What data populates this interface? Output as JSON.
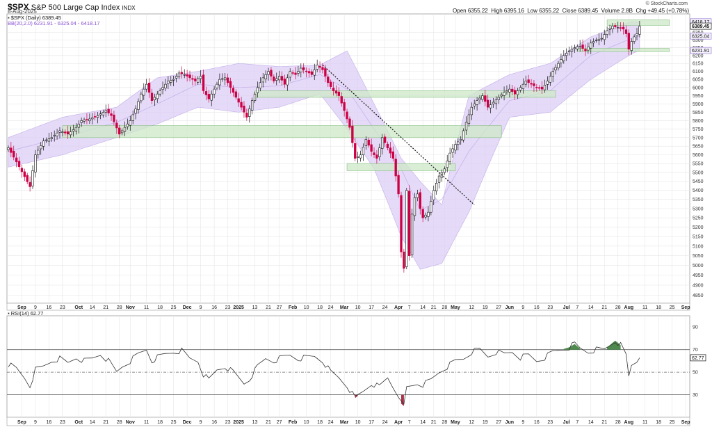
{
  "header": {
    "symbol": "$SPX",
    "name": "S&P 500 Large Cap Index",
    "exchange": "INDX",
    "date": "8-Aug-2025",
    "credit": "© StockCharts.com",
    "open_label": "Open",
    "open": "6355.22",
    "high_label": "High",
    "high": "6395.16",
    "low_label": "Low",
    "low": "6355.22",
    "close_label": "Close",
    "close": "6389.45",
    "volume_label": "Volume",
    "volume": "2.8B",
    "chg_label": "Chg",
    "chg": "+49.45 (+0.78%)"
  },
  "legend": {
    "price": "$SPX (Daily) 6389.45",
    "bb": "BB(20,2.0) 6231.91 - 6325.04 - 6418.17",
    "rsi": "RSI(14) 62.77"
  },
  "colors": {
    "up": "#111111",
    "down": "#cc0044",
    "band": "#dccef5",
    "band_line": "#c2aee8",
    "zone_fill": "#cde8c8",
    "zone_edge": "#8fc48a",
    "rsi_line": "#333333",
    "rsi_over": "#4e8a4e",
    "rsi_under": "#a83248",
    "grid": "#e6e6e6"
  },
  "chart_data": [
    {
      "type": "candlestick",
      "title": "$SPX (Daily) 6389.45",
      "ylim": [
        4810,
        6470
      ],
      "y_scale": "log",
      "y_ticks": [
        4850,
        4900,
        4950,
        5000,
        5050,
        5100,
        5150,
        5200,
        5250,
        5300,
        5350,
        5400,
        5450,
        5500,
        5550,
        5600,
        5650,
        5700,
        5750,
        5800,
        5850,
        5900,
        5950,
        6000,
        6050,
        6100,
        6150,
        6200,
        6250,
        6300,
        6350
      ],
      "x_ticks": [
        {
          "label": "Sep",
          "bold": true,
          "d": 5
        },
        {
          "label": "9",
          "d": 10
        },
        {
          "label": "16",
          "d": 15
        },
        {
          "label": "23",
          "d": 20
        },
        {
          "label": "Oct",
          "bold": true,
          "d": 26
        },
        {
          "label": "14",
          "d": 31
        },
        {
          "label": "21",
          "d": 36
        },
        {
          "label": "28",
          "d": 41
        },
        {
          "label": "Nov",
          "bold": true,
          "d": 45
        },
        {
          "label": "11",
          "d": 51
        },
        {
          "label": "18",
          "d": 56
        },
        {
          "label": "25",
          "d": 61
        },
        {
          "label": "Dec",
          "bold": true,
          "d": 66
        },
        {
          "label": "9",
          "d": 71
        },
        {
          "label": "16",
          "d": 76
        },
        {
          "label": "23",
          "d": 81
        },
        {
          "label": "2025",
          "bold": true,
          "d": 85
        },
        {
          "label": "13",
          "d": 91
        },
        {
          "label": "21",
          "d": 96
        },
        {
          "label": "27",
          "d": 100
        },
        {
          "label": "Feb",
          "bold": true,
          "d": 105
        },
        {
          "label": "10",
          "d": 110
        },
        {
          "label": "18",
          "d": 115
        },
        {
          "label": "24",
          "d": 119
        },
        {
          "label": "Mar",
          "bold": true,
          "d": 124
        },
        {
          "label": "10",
          "d": 129
        },
        {
          "label": "17",
          "d": 134
        },
        {
          "label": "24",
          "d": 139
        },
        {
          "label": "Apr",
          "bold": true,
          "d": 144
        },
        {
          "label": "7",
          "d": 148
        },
        {
          "label": "14",
          "d": 153
        },
        {
          "label": "21",
          "d": 157
        },
        {
          "label": "28",
          "d": 161
        },
        {
          "label": "May",
          "bold": true,
          "d": 165
        },
        {
          "label": "12",
          "d": 171
        },
        {
          "label": "19",
          "d": 176
        },
        {
          "label": "27",
          "d": 181
        },
        {
          "label": "Jun",
          "bold": true,
          "d": 185
        },
        {
          "label": "9",
          "d": 190
        },
        {
          "label": "16",
          "d": 195
        },
        {
          "label": "23",
          "d": 200
        },
        {
          "label": "Jul",
          "bold": true,
          "d": 206
        },
        {
          "label": "7",
          "d": 210
        },
        {
          "label": "14",
          "d": 215
        },
        {
          "label": "21",
          "d": 220
        },
        {
          "label": "28",
          "d": 225
        },
        {
          "label": "Aug",
          "bold": true,
          "d": 229
        },
        {
          "label": "11",
          "d": 235
        },
        {
          "label": "18",
          "d": 240
        },
        {
          "label": "25",
          "d": 245
        },
        {
          "label": "Sep",
          "bold": true,
          "d": 250
        }
      ],
      "x_total": 252,
      "last_index": 233,
      "key_closes": [
        [
          0,
          5640
        ],
        [
          3,
          5560
        ],
        [
          8,
          5420
        ],
        [
          10,
          5600
        ],
        [
          13,
          5680
        ],
        [
          16,
          5700
        ],
        [
          19,
          5740
        ],
        [
          22,
          5720
        ],
        [
          25,
          5760
        ],
        [
          27,
          5800
        ],
        [
          30,
          5810
        ],
        [
          33,
          5830
        ],
        [
          36,
          5860
        ],
        [
          38,
          5830
        ],
        [
          41,
          5720
        ],
        [
          43,
          5760
        ],
        [
          45,
          5800
        ],
        [
          47,
          5870
        ],
        [
          49,
          5960
        ],
        [
          51,
          6020
        ],
        [
          53,
          5920
        ],
        [
          55,
          5960
        ],
        [
          57,
          6000
        ],
        [
          59,
          6040
        ],
        [
          61,
          6050
        ],
        [
          63,
          6090
        ],
        [
          65,
          6080
        ],
        [
          67,
          6060
        ],
        [
          69,
          6040
        ],
        [
          71,
          6070
        ],
        [
          72,
          5980
        ],
        [
          74,
          5930
        ],
        [
          76,
          5990
        ],
        [
          78,
          6050
        ],
        [
          80,
          6060
        ],
        [
          82,
          6000
        ],
        [
          84,
          5940
        ],
        [
          86,
          5880
        ],
        [
          88,
          5820
        ],
        [
          90,
          5920
        ],
        [
          92,
          6000
        ],
        [
          94,
          6060
        ],
        [
          96,
          6100
        ],
        [
          98,
          6040
        ],
        [
          100,
          6070
        ],
        [
          102,
          6020
        ],
        [
          104,
          6100
        ],
        [
          106,
          6080
        ],
        [
          108,
          6120
        ],
        [
          110,
          6100
        ],
        [
          112,
          6080
        ],
        [
          114,
          6140
        ],
        [
          116,
          6110
        ],
        [
          118,
          6030
        ],
        [
          120,
          5980
        ],
        [
          122,
          5950
        ],
        [
          124,
          5860
        ],
        [
          126,
          5760
        ],
        [
          128,
          5580
        ],
        [
          130,
          5600
        ],
        [
          132,
          5690
        ],
        [
          134,
          5620
        ],
        [
          136,
          5580
        ],
        [
          138,
          5700
        ],
        [
          140,
          5640
        ],
        [
          142,
          5580
        ],
        [
          144,
          5380
        ],
        [
          145,
          5070
        ],
        [
          146,
          4985
        ],
        [
          147,
          5400
        ],
        [
          148,
          5050
        ],
        [
          149,
          5270
        ],
        [
          150,
          5360
        ],
        [
          151,
          5380
        ],
        [
          152,
          5300
        ],
        [
          153,
          5250
        ],
        [
          155,
          5280
        ],
        [
          157,
          5400
        ],
        [
          159,
          5480
        ],
        [
          161,
          5520
        ],
        [
          163,
          5610
        ],
        [
          165,
          5660
        ],
        [
          167,
          5690
        ],
        [
          169,
          5790
        ],
        [
          171,
          5880
        ],
        [
          173,
          5920
        ],
        [
          175,
          5950
        ],
        [
          177,
          5880
        ],
        [
          179,
          5910
        ],
        [
          181,
          5940
        ],
        [
          183,
          5970
        ],
        [
          185,
          5990
        ],
        [
          187,
          5960
        ],
        [
          189,
          6000
        ],
        [
          191,
          6040
        ],
        [
          193,
          6020
        ],
        [
          195,
          6000
        ],
        [
          197,
          5990
        ],
        [
          199,
          6040
        ],
        [
          201,
          6100
        ],
        [
          203,
          6150
        ],
        [
          205,
          6200
        ],
        [
          207,
          6230
        ],
        [
          209,
          6250
        ],
        [
          211,
          6260
        ],
        [
          213,
          6230
        ],
        [
          215,
          6280
        ],
        [
          217,
          6300
        ],
        [
          219,
          6310
        ],
        [
          221,
          6360
        ],
        [
          223,
          6390
        ],
        [
          225,
          6380
        ],
        [
          227,
          6370
        ],
        [
          228,
          6340
        ],
        [
          229,
          6240
        ],
        [
          230,
          6290
        ],
        [
          231,
          6320
        ],
        [
          232,
          6340
        ],
        [
          233,
          6389
        ]
      ],
      "bb_upper": [
        [
          0,
          5700
        ],
        [
          20,
          5820
        ],
        [
          40,
          5880
        ],
        [
          55,
          6060
        ],
        [
          70,
          6100
        ],
        [
          85,
          6150
        ],
        [
          100,
          6130
        ],
        [
          115,
          6140
        ],
        [
          125,
          6230
        ],
        [
          135,
          5900
        ],
        [
          145,
          5580
        ],
        [
          152,
          5450
        ],
        [
          160,
          5320
        ],
        [
          170,
          5950
        ],
        [
          185,
          6080
        ],
        [
          200,
          6150
        ],
        [
          215,
          6320
        ],
        [
          230,
          6420
        ],
        [
          233,
          6418
        ]
      ],
      "bb_middle": [
        [
          0,
          5620
        ],
        [
          20,
          5700
        ],
        [
          40,
          5790
        ],
        [
          55,
          5900
        ],
        [
          70,
          6020
        ],
        [
          85,
          6000
        ],
        [
          100,
          6010
        ],
        [
          115,
          6080
        ],
        [
          125,
          5990
        ],
        [
          135,
          5750
        ],
        [
          145,
          5520
        ],
        [
          152,
          5290
        ],
        [
          160,
          5350
        ],
        [
          170,
          5620
        ],
        [
          185,
          5920
        ],
        [
          200,
          5980
        ],
        [
          215,
          6200
        ],
        [
          230,
          6310
        ],
        [
          233,
          6325
        ]
      ],
      "bb_lower": [
        [
          0,
          5530
        ],
        [
          20,
          5600
        ],
        [
          40,
          5700
        ],
        [
          55,
          5780
        ],
        [
          70,
          5880
        ],
        [
          85,
          5850
        ],
        [
          100,
          5880
        ],
        [
          115,
          5960
        ],
        [
          125,
          5750
        ],
        [
          135,
          5520
        ],
        [
          145,
          5150
        ],
        [
          152,
          4980
        ],
        [
          160,
          5010
        ],
        [
          170,
          5280
        ],
        [
          185,
          5820
        ],
        [
          200,
          5850
        ],
        [
          215,
          6050
        ],
        [
          230,
          6210
        ],
        [
          233,
          6232
        ]
      ],
      "zones": [
        {
          "x1": 20,
          "x2": 182,
          "lo": 5700,
          "hi": 5770
        },
        {
          "x1": 91,
          "x2": 202,
          "lo": 5940,
          "hi": 5980
        },
        {
          "x1": 125,
          "x2": 165,
          "lo": 5510,
          "hi": 5550
        },
        {
          "x1": 221,
          "x2": 244,
          "lo": 6395,
          "hi": 6430
        },
        {
          "x1": 210,
          "x2": 244,
          "lo": 6225,
          "hi": 6245
        }
      ],
      "trendline": [
        [
          116,
          6140
        ],
        [
          172,
          5320
        ]
      ],
      "price_tags": [
        "6418.17",
        "6389.45",
        "6325.04",
        "6231.91"
      ]
    },
    {
      "type": "line",
      "title": "RSI(14) 62.77",
      "ylim": [
        10,
        100
      ],
      "y_ticks": [
        30,
        50,
        70,
        90
      ],
      "levels": [
        30,
        50,
        70
      ],
      "values": [
        [
          0,
          57
        ],
        [
          3,
          53
        ],
        [
          6,
          45
        ],
        [
          8,
          38
        ],
        [
          10,
          52
        ],
        [
          13,
          55
        ],
        [
          16,
          60
        ],
        [
          19,
          62
        ],
        [
          22,
          58
        ],
        [
          25,
          63
        ],
        [
          28,
          60
        ],
        [
          31,
          62
        ],
        [
          34,
          66
        ],
        [
          37,
          60
        ],
        [
          40,
          50
        ],
        [
          42,
          55
        ],
        [
          45,
          60
        ],
        [
          48,
          66
        ],
        [
          51,
          70
        ],
        [
          53,
          60
        ],
        [
          55,
          63
        ],
        [
          58,
          66
        ],
        [
          61,
          68
        ],
        [
          64,
          69
        ],
        [
          67,
          62
        ],
        [
          70,
          60
        ],
        [
          72,
          48
        ],
        [
          74,
          43
        ],
        [
          77,
          52
        ],
        [
          80,
          55
        ],
        [
          83,
          50
        ],
        [
          85,
          45
        ],
        [
          87,
          40
        ],
        [
          89,
          44
        ],
        [
          92,
          55
        ],
        [
          95,
          62
        ],
        [
          98,
          60
        ],
        [
          101,
          63
        ],
        [
          104,
          65
        ],
        [
          107,
          62
        ],
        [
          110,
          63
        ],
        [
          113,
          64
        ],
        [
          116,
          60
        ],
        [
          119,
          50
        ],
        [
          122,
          45
        ],
        [
          125,
          38
        ],
        [
          128,
          27
        ],
        [
          131,
          33
        ],
        [
          134,
          40
        ],
        [
          137,
          37
        ],
        [
          140,
          45
        ],
        [
          142,
          37
        ],
        [
          144,
          30
        ],
        [
          145,
          22
        ],
        [
          146,
          20
        ],
        [
          147,
          36
        ],
        [
          149,
          38
        ],
        [
          151,
          40
        ],
        [
          153,
          39
        ],
        [
          156,
          43
        ],
        [
          159,
          50
        ],
        [
          162,
          55
        ],
        [
          165,
          60
        ],
        [
          168,
          62
        ],
        [
          171,
          68
        ],
        [
          174,
          70
        ],
        [
          177,
          64
        ],
        [
          180,
          68
        ],
        [
          183,
          66
        ],
        [
          186,
          68
        ],
        [
          189,
          63
        ],
        [
          192,
          65
        ],
        [
          195,
          60
        ],
        [
          198,
          63
        ],
        [
          201,
          68
        ],
        [
          204,
          70
        ],
        [
          207,
          72
        ],
        [
          209,
          75
        ],
        [
          211,
          71
        ],
        [
          214,
          68
        ],
        [
          217,
          70
        ],
        [
          220,
          70
        ],
        [
          222,
          74
        ],
        [
          224,
          78
        ],
        [
          226,
          74
        ],
        [
          228,
          65
        ],
        [
          229,
          46
        ],
        [
          230,
          56
        ],
        [
          231,
          58
        ],
        [
          232,
          60
        ],
        [
          233,
          62.77
        ]
      ],
      "value_tag": "62.77"
    }
  ]
}
